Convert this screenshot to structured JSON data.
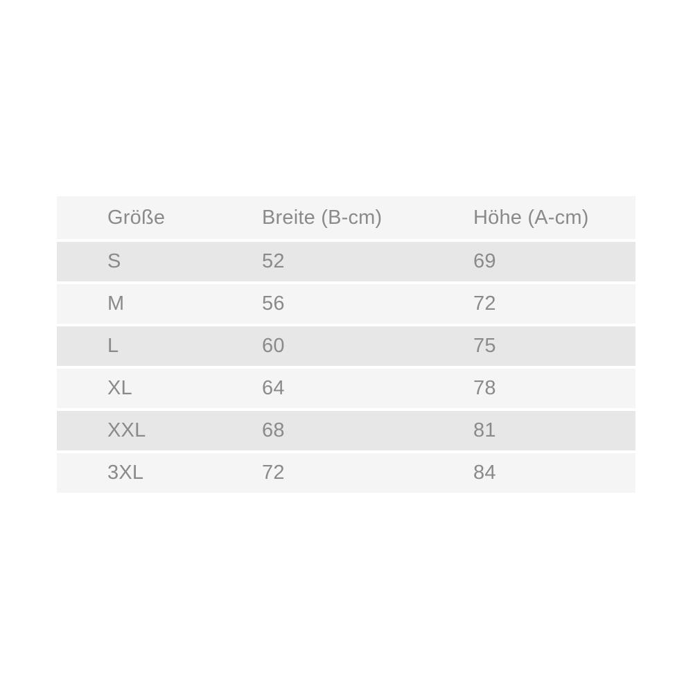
{
  "table": {
    "columns": [
      {
        "label": "Größe"
      },
      {
        "label": "Breite (B-cm)"
      },
      {
        "label": "Höhe (A-cm)"
      }
    ],
    "rows": [
      {
        "size": "S",
        "width": "52",
        "height": "69"
      },
      {
        "size": "M",
        "width": "56",
        "height": "72"
      },
      {
        "size": "L",
        "width": "60",
        "height": "75"
      },
      {
        "size": "XL",
        "width": "64",
        "height": "78"
      },
      {
        "size": "XXL",
        "width": "68",
        "height": "81"
      },
      {
        "size": "3XL",
        "width": "72",
        "height": "84"
      }
    ],
    "colors": {
      "header_bg": "#f5f5f5",
      "row_light_bg": "#f5f5f5",
      "row_dark_bg": "#e7e7e7",
      "text": "#8a8a8a",
      "row_gap": "#ffffff"
    }
  },
  "chart_data": {
    "type": "table",
    "title": "",
    "columns": [
      "Größe",
      "Breite (B-cm)",
      "Höhe (A-cm)"
    ],
    "rows": [
      [
        "S",
        52,
        69
      ],
      [
        "M",
        56,
        72
      ],
      [
        "L",
        60,
        75
      ],
      [
        "XL",
        64,
        78
      ],
      [
        "XXL",
        68,
        81
      ],
      [
        "3XL",
        72,
        84
      ]
    ]
  }
}
